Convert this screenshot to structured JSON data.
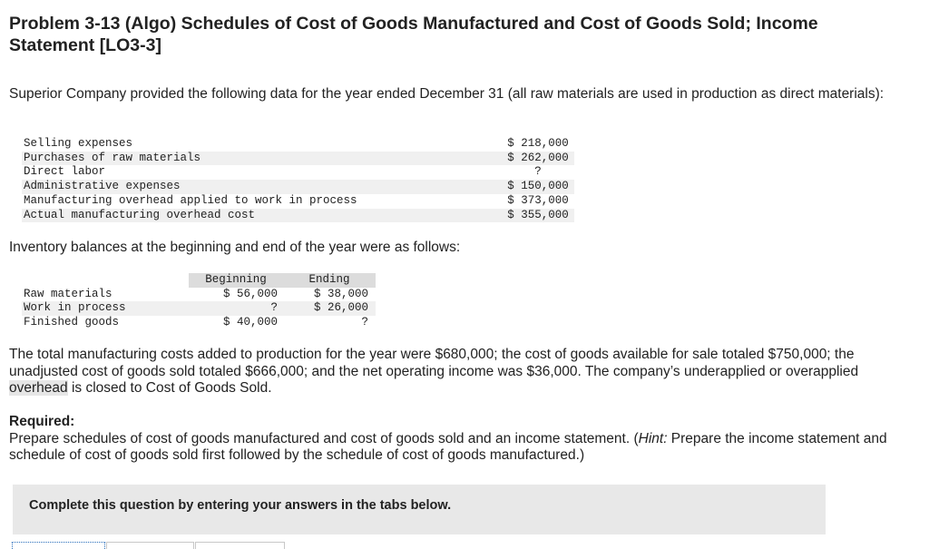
{
  "title": "Problem 3-13 (Algo) Schedules of Cost of Goods Manufactured and Cost of Goods Sold; Income Statement [LO3-3]",
  "intro": "Superior Company provided the following data for the year ended December 31 (all raw materials are used in production as direct materials):",
  "expenses": [
    {
      "label": "Selling expenses",
      "value": "$ 218,000"
    },
    {
      "label": "Purchases of raw materials",
      "value": "$ 262,000"
    },
    {
      "label": "Direct labor",
      "value": "?"
    },
    {
      "label": "Administrative expenses",
      "value": "$ 150,000"
    },
    {
      "label": "Manufacturing overhead applied to work in process",
      "value": "$ 373,000"
    },
    {
      "label": "Actual manufacturing overhead cost",
      "value": "$ 355,000"
    }
  ],
  "inventory_intro": "Inventory balances at the beginning and end of the year were as follows:",
  "inventory": {
    "headers": [
      "Beginning",
      "Ending"
    ],
    "rows": [
      {
        "label": "Raw materials",
        "beginning": "$ 56,000",
        "ending": "$ 38,000"
      },
      {
        "label": "Work in process",
        "beginning": "?",
        "ending": "$ 26,000"
      },
      {
        "label": "Finished goods",
        "beginning": "$ 40,000",
        "ending": "?"
      }
    ]
  },
  "summary": {
    "before": "The total manufacturing costs added to production for the year were $680,000; the cost of goods available for sale totaled $750,000; the unadjusted cost of goods sold totaled $666,000; and the net operating income was $36,000. The company’s underapplied or overapplied ",
    "highlight": "overhead",
    "after": " is closed to Cost of Goods Sold."
  },
  "required": {
    "heading": "Required:",
    "text_before": "Prepare schedules of cost of goods manufactured and cost of goods sold and an income statement. (",
    "hint_label": "Hint:",
    "text_after": " Prepare the income statement and schedule of cost of goods sold first followed by the schedule of cost of goods manufactured.)"
  },
  "instructions": "Complete this question by entering your answers in the tabs below."
}
